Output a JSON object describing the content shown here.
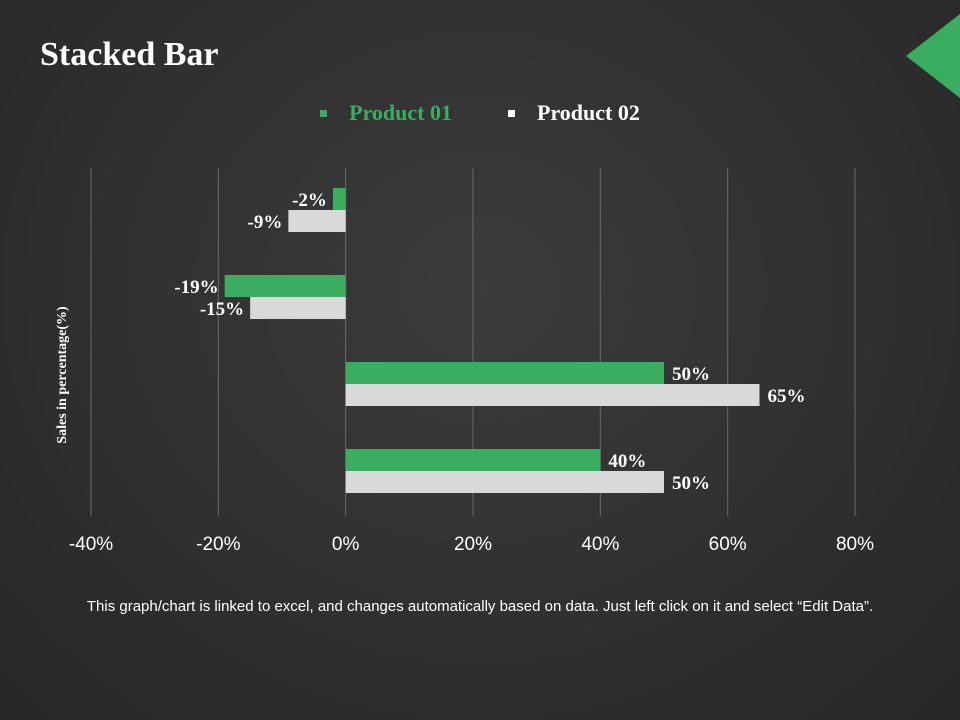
{
  "slide": {
    "title": "Stacked Bar",
    "accent_color": "#3bad60",
    "footnote": "This graph/chart is linked to excel, and changes automatically based on data. Just left click on it and select “Edit Data”."
  },
  "chart_data": {
    "type": "bar",
    "orientation": "horizontal",
    "title": "",
    "xlabel": "",
    "ylabel": "Sales in percentage(%)",
    "xlim": [
      -40,
      80
    ],
    "x_ticks": [
      -40,
      -20,
      0,
      20,
      40,
      60,
      80
    ],
    "tick_labels": [
      "-40%",
      "-20%",
      "0%",
      "20%",
      "40%",
      "60%",
      "80%"
    ],
    "categories": [
      "",
      "",
      "",
      ""
    ],
    "grid": true,
    "legend_position": "top",
    "series": [
      {
        "name": "Product 01",
        "color": "#3bad60",
        "values": [
          -2,
          -19,
          50,
          40
        ],
        "labels": [
          "-2%",
          "-19%",
          "50%",
          "40%"
        ]
      },
      {
        "name": "Product 02",
        "color": "#d9d9d9",
        "values": [
          -9,
          -15,
          65,
          50
        ],
        "labels": [
          "-9%",
          "-15%",
          "65%",
          "50%"
        ]
      }
    ]
  }
}
